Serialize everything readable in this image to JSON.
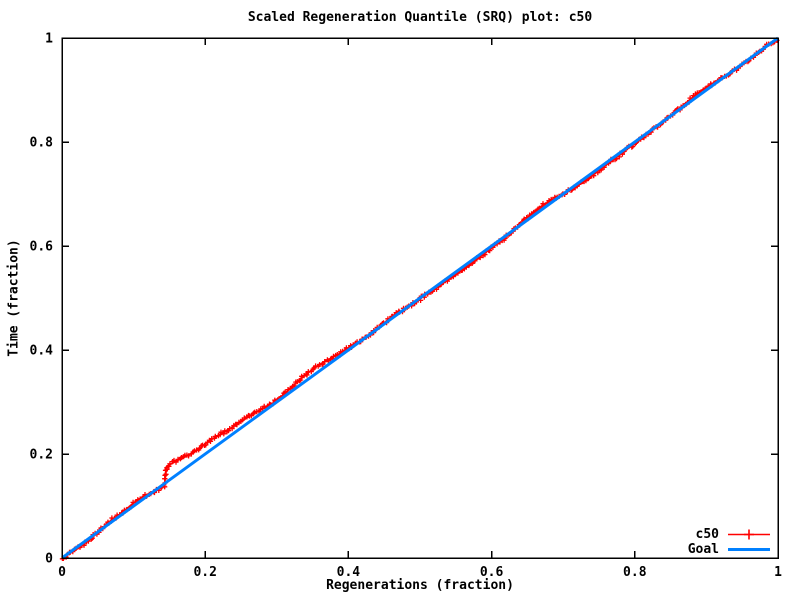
{
  "chart_data": {
    "type": "line",
    "title": "Scaled Regeneration Quantile (SRQ) plot: c50",
    "xlabel": "Regenerations (fraction)",
    "ylabel": "Time (fraction)",
    "xlim": [
      0,
      1
    ],
    "ylim": [
      0,
      1
    ],
    "grid": false,
    "x_ticks": [
      "0",
      "0.2",
      "0.4",
      "0.6",
      "0.8",
      "1"
    ],
    "x_tick_values": [
      0,
      0.2,
      0.4,
      0.6,
      0.8,
      1
    ],
    "y_ticks": [
      "0",
      "0.2",
      "0.4",
      "0.6",
      "0.8",
      "1"
    ],
    "y_tick_values": [
      0,
      0.2,
      0.4,
      0.6,
      0.8,
      1
    ],
    "legend": {
      "position": "bottom-right",
      "entries": [
        {
          "label": "c50",
          "color": "#ff0000",
          "marker": "plus"
        },
        {
          "label": "Goal",
          "color": "#0080ff",
          "marker": "none"
        }
      ]
    },
    "series": [
      {
        "name": "c50",
        "style": "linespoints-plus",
        "color": "#ff0000",
        "points": [
          [
            0.0,
            0.0
          ],
          [
            0.01,
            0.008
          ],
          [
            0.025,
            0.021
          ],
          [
            0.04,
            0.037
          ],
          [
            0.055,
            0.055
          ],
          [
            0.07,
            0.074
          ],
          [
            0.085,
            0.088
          ],
          [
            0.1,
            0.106
          ],
          [
            0.115,
            0.12
          ],
          [
            0.13,
            0.128
          ],
          [
            0.143,
            0.139
          ],
          [
            0.146,
            0.176
          ],
          [
            0.16,
            0.187
          ],
          [
            0.175,
            0.197
          ],
          [
            0.19,
            0.208
          ],
          [
            0.205,
            0.225
          ],
          [
            0.22,
            0.237
          ],
          [
            0.235,
            0.249
          ],
          [
            0.25,
            0.262
          ],
          [
            0.265,
            0.276
          ],
          [
            0.28,
            0.287
          ],
          [
            0.295,
            0.298
          ],
          [
            0.31,
            0.315
          ],
          [
            0.325,
            0.334
          ],
          [
            0.34,
            0.352
          ],
          [
            0.355,
            0.368
          ],
          [
            0.37,
            0.38
          ],
          [
            0.385,
            0.391
          ],
          [
            0.4,
            0.404
          ],
          [
            0.415,
            0.416
          ],
          [
            0.43,
            0.43
          ],
          [
            0.445,
            0.447
          ],
          [
            0.46,
            0.463
          ],
          [
            0.475,
            0.476
          ],
          [
            0.49,
            0.489
          ],
          [
            0.505,
            0.503
          ],
          [
            0.52,
            0.517
          ],
          [
            0.535,
            0.531
          ],
          [
            0.55,
            0.545
          ],
          [
            0.565,
            0.559
          ],
          [
            0.58,
            0.575
          ],
          [
            0.595,
            0.591
          ],
          [
            0.61,
            0.607
          ],
          [
            0.625,
            0.624
          ],
          [
            0.64,
            0.642
          ],
          [
            0.655,
            0.66
          ],
          [
            0.67,
            0.677
          ],
          [
            0.685,
            0.689
          ],
          [
            0.7,
            0.7
          ],
          [
            0.715,
            0.712
          ],
          [
            0.73,
            0.725
          ],
          [
            0.745,
            0.74
          ],
          [
            0.76,
            0.756
          ],
          [
            0.775,
            0.771
          ],
          [
            0.79,
            0.787
          ],
          [
            0.805,
            0.802
          ],
          [
            0.82,
            0.818
          ],
          [
            0.835,
            0.834
          ],
          [
            0.85,
            0.85
          ],
          [
            0.865,
            0.867
          ],
          [
            0.88,
            0.885
          ],
          [
            0.895,
            0.901
          ],
          [
            0.91,
            0.913
          ],
          [
            0.925,
            0.925
          ],
          [
            0.94,
            0.938
          ],
          [
            0.955,
            0.953
          ],
          [
            0.97,
            0.969
          ],
          [
            0.985,
            0.985
          ],
          [
            1.0,
            1.0
          ]
        ]
      },
      {
        "name": "Goal",
        "style": "line",
        "color": "#0080ff",
        "points": [
          [
            0,
            0
          ],
          [
            1,
            1
          ]
        ]
      }
    ]
  },
  "layout_colors": {
    "background": "#ffffff",
    "axis": "#000000",
    "text": "#000000"
  }
}
